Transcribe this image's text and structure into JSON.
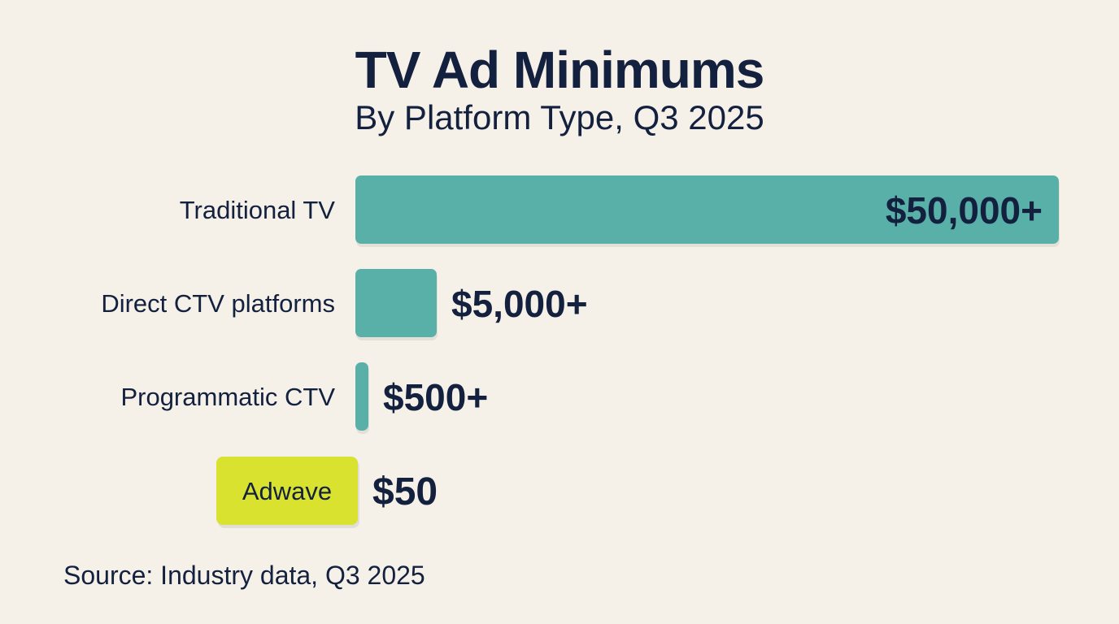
{
  "chart_data": {
    "type": "bar",
    "orientation": "horizontal",
    "title": "TV Ad Minimums",
    "subtitle": "By Platform Type, Q3 2025",
    "categories": [
      "Traditional TV",
      "Direct CTV platforms",
      "Programmatic CTV",
      "Adwave"
    ],
    "values": [
      50000,
      5000,
      500,
      50
    ],
    "value_labels": [
      "$50,000+",
      "$5,000+",
      "$500+",
      "$50"
    ],
    "highlight": "Adwave",
    "colors": {
      "bar": "#58b0a8",
      "highlight": "#d8e22f",
      "text": "#13213f",
      "background": "#f5f1e8"
    },
    "grid": false,
    "legend": "none",
    "source": "Source: Industry data, Q3 2025"
  }
}
